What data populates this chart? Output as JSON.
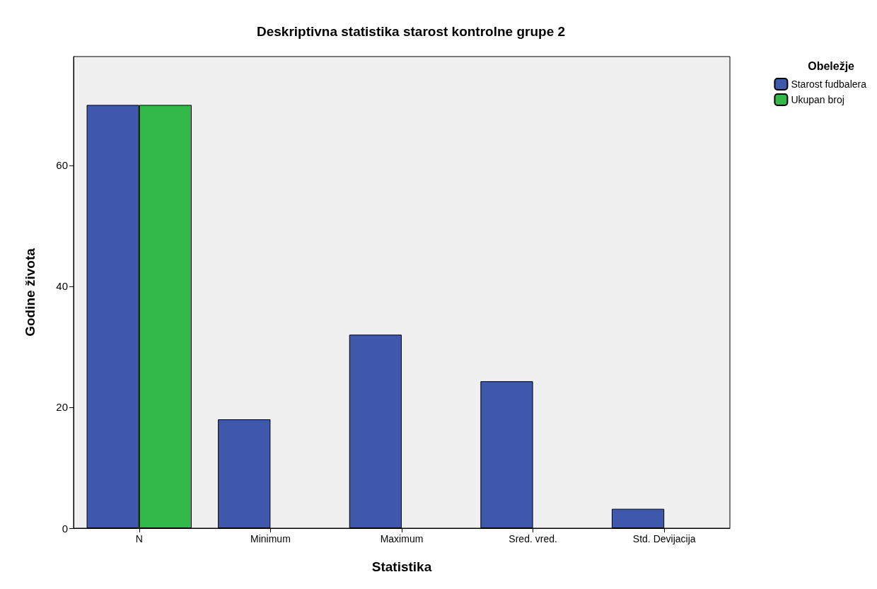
{
  "chart_data": {
    "type": "bar",
    "title": "Deskriptivna statistika starost kontrolne grupe 2",
    "xlabel": "Statistika",
    "ylabel": "Godine života",
    "legend_title": "Obeležje",
    "categories": [
      "N",
      "Minimum",
      "Maximum",
      "Sred. vred.",
      "Std. Devijacija"
    ],
    "series": [
      {
        "name": "Starost fudbalera",
        "color": "#3e58ac",
        "values": [
          70,
          18,
          32,
          24.3,
          3.2
        ]
      },
      {
        "name": "Ukupan broj",
        "color": "#33b84a",
        "values": [
          70,
          null,
          null,
          null,
          null
        ]
      }
    ],
    "ylim": [
      0,
      78
    ],
    "yticks": [
      0,
      20,
      40,
      60
    ],
    "grid": false,
    "legend": "top right"
  }
}
